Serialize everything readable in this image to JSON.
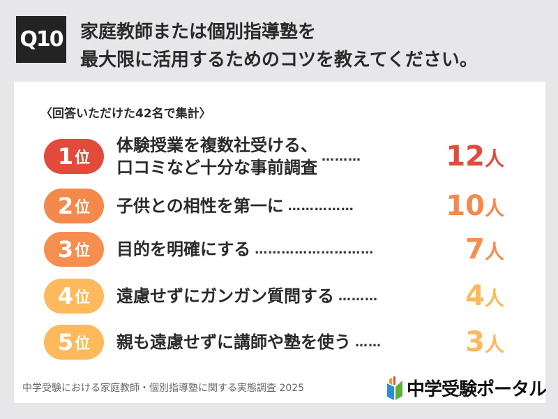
{
  "question": {
    "badge": "Q10",
    "line1": "家庭教師または個別指導塾を",
    "line2": "最大限に活用するためのコツを教えてください。"
  },
  "subtitle": "〈回答いただけた42名で集計〉",
  "rank_suffix": "位",
  "unit": "人",
  "rankings": [
    {
      "rank": "1",
      "label_lines": [
        "体験授業を複数社受ける、",
        "口コミなど十分な事前調査"
      ],
      "count": "12",
      "color": "#e24b3b",
      "dots": "………"
    },
    {
      "rank": "2",
      "label_lines": [
        "子供との相性を第一に"
      ],
      "count": "10",
      "color": "#f5894c",
      "dots": "……………"
    },
    {
      "rank": "3",
      "label_lines": [
        "目的を明確にする"
      ],
      "count": "7",
      "color": "#f68e4f",
      "dots": "………………………"
    },
    {
      "rank": "4",
      "label_lines": [
        "遠慮せずにガンガン質問する"
      ],
      "count": "4",
      "color": "#fdb95b",
      "dots": "………"
    },
    {
      "rank": "5",
      "label_lines": [
        "親も遠慮せずに講師や塾を使う"
      ],
      "count": "3",
      "color": "#fdb95b",
      "dots": "……"
    }
  ],
  "footer": "中学受験における家庭教師・個別指導塾に関する実態調査 2025",
  "logo": {
    "text": "中学受験ポータル",
    "icon": "book-icon"
  }
}
